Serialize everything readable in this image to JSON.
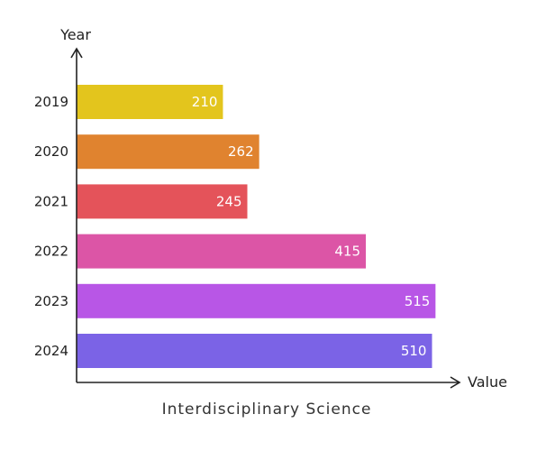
{
  "chart_data": {
    "type": "bar",
    "orientation": "horizontal",
    "title": "Interdisciplinary Science",
    "xlabel": "Value",
    "ylabel": "Year",
    "categories": [
      "2019",
      "2020",
      "2021",
      "2022",
      "2023",
      "2024"
    ],
    "values": [
      210,
      262,
      245,
      415,
      515,
      510
    ],
    "colors": [
      "#e3c51d",
      "#e0832f",
      "#e4535a",
      "#dc55a6",
      "#b856e6",
      "#7b63e6"
    ],
    "xlim": [
      0,
      560
    ],
    "grid": false,
    "legend": "none",
    "data_labels": true
  }
}
